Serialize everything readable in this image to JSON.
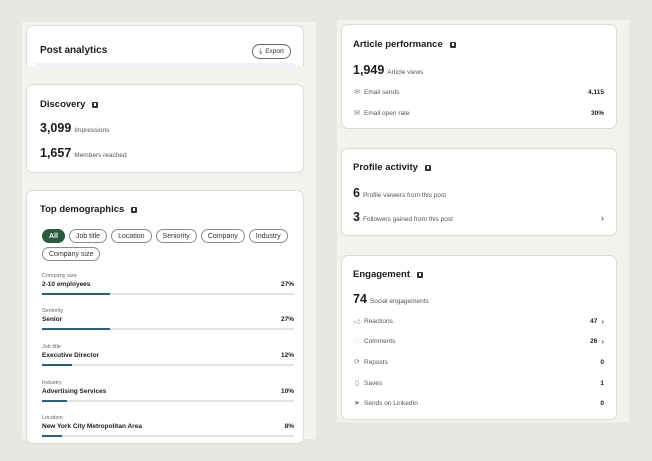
{
  "post_analytics": {
    "title": "Post analytics",
    "export_label": "Export"
  },
  "discovery": {
    "title": "Discovery",
    "impressions": {
      "value": "3,099",
      "label": "Impressions"
    },
    "members_reached": {
      "value": "1,657",
      "label": "Members reached"
    }
  },
  "top_demographics": {
    "title": "Top demographics",
    "chips": [
      "All",
      "Job title",
      "Location",
      "Seniority",
      "Company",
      "Industry",
      "Company size"
    ],
    "active_chip": "All",
    "items": [
      {
        "category": "Company size",
        "label": "2-10 employees",
        "percent": "27%",
        "fraction": 0.27
      },
      {
        "category": "Seniority",
        "label": "Senior",
        "percent": "27%",
        "fraction": 0.27
      },
      {
        "category": "Job title",
        "label": "Executive Director",
        "percent": "12%",
        "fraction": 0.12
      },
      {
        "category": "Industry",
        "label": "Advertising Services",
        "percent": "10%",
        "fraction": 0.1
      },
      {
        "category": "Location",
        "label": "New York City Metropolitan Area",
        "percent": "8%",
        "fraction": 0.08
      }
    ]
  },
  "article_performance": {
    "title": "Article performance",
    "views": {
      "value": "1,949",
      "label": "Article views"
    },
    "rows": [
      {
        "icon": "email-icon",
        "label": "Email sends",
        "value": "4,115"
      },
      {
        "icon": "envelope-open-icon",
        "label": "Email open rate",
        "value": "30%"
      }
    ]
  },
  "profile_activity": {
    "title": "Profile activity",
    "viewers": {
      "value": "6",
      "label": "Profile viewers from this post"
    },
    "followers": {
      "value": "3",
      "label": "Followers gained from this post"
    }
  },
  "engagement": {
    "title": "Engagement",
    "social": {
      "value": "74",
      "label": "Social engagements"
    },
    "rows": [
      {
        "icon": "thumbs-up-icon",
        "label": "Reactions",
        "value": "47"
      },
      {
        "icon": "comment-icon",
        "label": "Comments",
        "value": "26"
      },
      {
        "icon": "repost-icon",
        "label": "Reposts",
        "value": "0"
      },
      {
        "icon": "bookmark-icon",
        "label": "Saves",
        "value": "1"
      },
      {
        "icon": "send-icon",
        "label": "Sends on LinkedIn",
        "value": "0"
      }
    ]
  },
  "colors": {
    "chip_active": "#2b5a3f",
    "bar_fill": "#2e5f7a",
    "background": "#e9e7e2"
  }
}
